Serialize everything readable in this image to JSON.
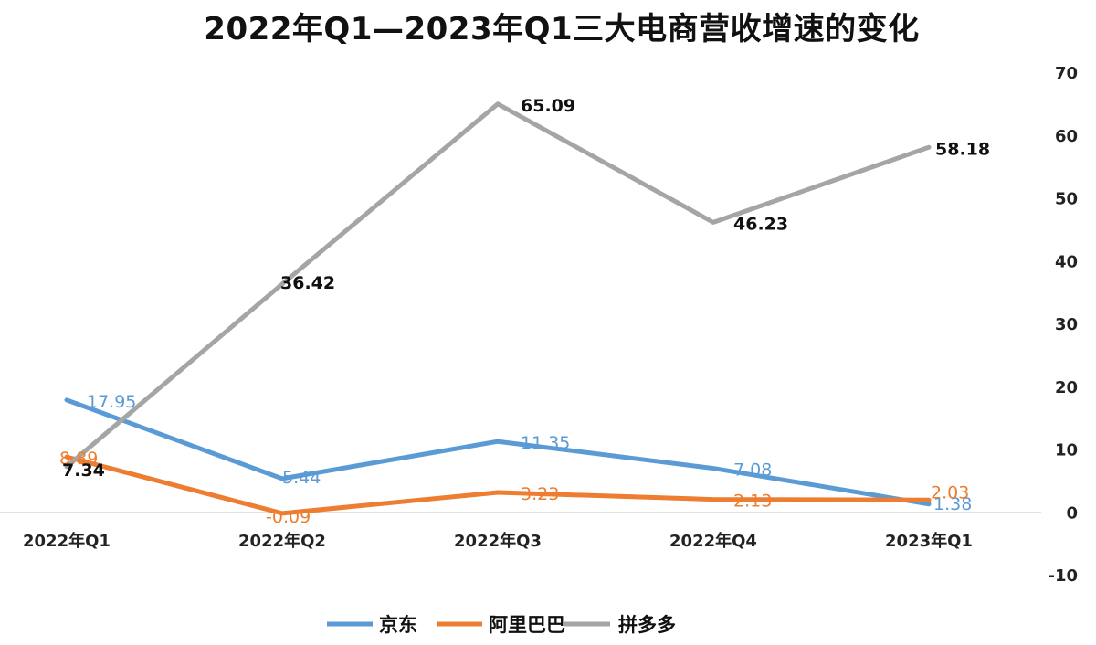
{
  "chart_data": {
    "type": "line",
    "title": "2022年Q1—2023年Q1三大电商营收增速的变化",
    "categories": [
      "2022年Q1",
      "2022年Q2",
      "2022年Q3",
      "2022年Q4",
      "2023年Q1"
    ],
    "series": [
      {
        "name": "京东",
        "color": "#5b9bd5",
        "values": [
          17.95,
          5.44,
          11.35,
          7.08,
          1.38
        ]
      },
      {
        "name": "阿里巴巴",
        "color": "#ed7d31",
        "values": [
          8.89,
          -0.09,
          3.23,
          2.13,
          2.03
        ]
      },
      {
        "name": "拼多多",
        "color": "#a5a5a5",
        "values": [
          7.34,
          36.42,
          65.09,
          46.23,
          58.18
        ]
      }
    ],
    "value_labels": [
      [
        "17.95",
        "5.44",
        "11.35",
        "7.08",
        "1.38"
      ],
      [
        "8.89",
        "-0.09",
        "3.23",
        "2.13",
        "2.03"
      ],
      [
        "7.34",
        "36.42",
        "65.09",
        "46.23",
        "58.18"
      ]
    ],
    "y_ticks": [
      "70",
      "60",
      "50",
      "40",
      "30",
      "20",
      "10",
      "0",
      "-10"
    ],
    "ylim": [
      -10,
      70
    ],
    "y_axis_side": "right",
    "grid": false,
    "legend_position": "bottom"
  }
}
